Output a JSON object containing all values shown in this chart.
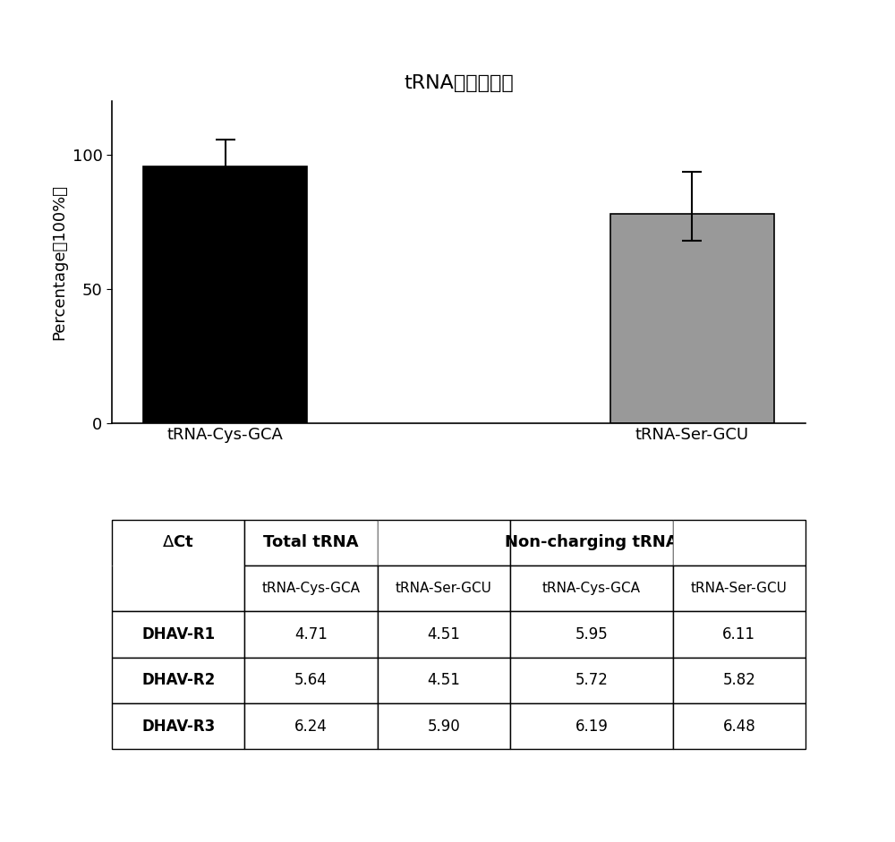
{
  "title": "tRNA氨酰化水平",
  "categories": [
    "tRNA-Cys-GCA",
    "tRNA-Ser-GCU"
  ],
  "values": [
    95.5,
    78.0
  ],
  "errors_upper": [
    10.0,
    15.5
  ],
  "errors_lower": [
    5.0,
    10.0
  ],
  "bar_colors": [
    "#000000",
    "#999999"
  ],
  "ylabel": "Percentage（100%）",
  "ylim": [
    0,
    120
  ],
  "yticks": [
    0,
    50,
    100
  ],
  "background_color": "#ffffff",
  "table_header_row1": [
    "ΔCt",
    "Total tRNA",
    "",
    "Non-charging tRNA",
    ""
  ],
  "table_header_row2": [
    "",
    "tRNA-Cys-GCA",
    "tRNA-Ser-GCU",
    "tRNA-Cys-GCA",
    "tRNA-Ser-GCU"
  ],
  "table_rows": [
    [
      "DHAV-R1",
      "4.71",
      "4.51",
      "5.95",
      "6.11"
    ],
    [
      "DHAV-R2",
      "5.64",
      "4.51",
      "5.72",
      "5.82"
    ],
    [
      "DHAV-R3",
      "6.24",
      "5.90",
      "6.19",
      "6.48"
    ]
  ]
}
